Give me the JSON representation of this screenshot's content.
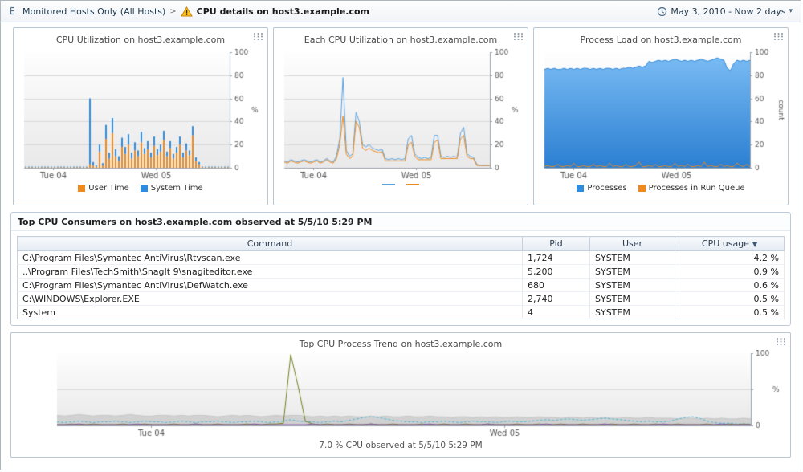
{
  "header": {
    "breadcrumb_root": "Monitored Hosts Only (All Hosts)",
    "breadcrumb_separator": ">",
    "page_title": "CPU details on host3.example.com",
    "time_range": "May 3, 2010 - Now 2 days"
  },
  "icons": {
    "sort_desc": "▼",
    "caret_down": "▾"
  },
  "table": {
    "title": "Top CPU Consumers on host3.example.com observed at 5/5/10 5:29 PM",
    "columns": [
      "Command",
      "Pid",
      "User",
      "CPU usage"
    ],
    "sorted_by": "CPU usage",
    "sort_direction": "desc",
    "rows": [
      {
        "command": "C:\\Program Files\\Symantec AntiVirus\\Rtvscan.exe",
        "pid": "1,724",
        "user": "SYSTEM",
        "cpu": "4.2 %"
      },
      {
        "command": "..\\Program Files\\TechSmith\\SnagIt 9\\snagiteditor.exe",
        "pid": "5,200",
        "user": "SYSTEM",
        "cpu": "0.9 %"
      },
      {
        "command": "C:\\Program Files\\Symantec AntiVirus\\DefWatch.exe",
        "pid": "680",
        "user": "SYSTEM",
        "cpu": "0.6 %"
      },
      {
        "command": "C:\\WINDOWS\\Explorer.EXE",
        "pid": "2,740",
        "user": "SYSTEM",
        "cpu": "0.5 %"
      },
      {
        "command": "System",
        "pid": "4",
        "user": "SYSTEM",
        "cpu": "0.5 %"
      }
    ]
  },
  "chart_data": [
    {
      "id": "cpu_utilization",
      "type": "bar",
      "title": "CPU Utilization on host3.example.com",
      "ylabel": "%",
      "ylim": [
        0,
        100
      ],
      "yticks": [
        0,
        20,
        40,
        60,
        80,
        100
      ],
      "xticks": [
        {
          "label": "Tue 04",
          "pos": 0.14
        },
        {
          "label": "Wed 05",
          "pos": 0.64
        }
      ],
      "stacked": true,
      "series": [
        {
          "name": "User Time",
          "color": "#ee8a1d",
          "render": "bar",
          "values": [
            0.5,
            0.5,
            0.5,
            0.5,
            0.5,
            0.5,
            0.5,
            0.5,
            0.5,
            0.5,
            0.5,
            0.5,
            0.5,
            0.5,
            0.5,
            0.5,
            0.5,
            0.5,
            0.5,
            0.5,
            3,
            2,
            1,
            14,
            2,
            25,
            8,
            30,
            10,
            6,
            18,
            12,
            20,
            8,
            15,
            10,
            22,
            12,
            16,
            9,
            19,
            11,
            14,
            24,
            10,
            17,
            8,
            13,
            20,
            9,
            15,
            11,
            28,
            6,
            3,
            0.5,
            0.5,
            0.5,
            0.5,
            0.5,
            0.5,
            0.5,
            0.5,
            0.5
          ]
        },
        {
          "name": "System Time",
          "color": "#2e8ce0",
          "render": "bar",
          "values": [
            0.5,
            0.5,
            0.5,
            0.5,
            0.5,
            0.5,
            0.5,
            0.5,
            0.5,
            0.5,
            0.5,
            0.5,
            0.5,
            0.5,
            0.5,
            0.5,
            0.5,
            0.5,
            0.5,
            0.5,
            57,
            3,
            1,
            6,
            2,
            12,
            5,
            13,
            6,
            4,
            8,
            6,
            9,
            5,
            7,
            5,
            9,
            5,
            7,
            4,
            8,
            5,
            6,
            8,
            4,
            6,
            4,
            5,
            7,
            4,
            6,
            4,
            8,
            3,
            2,
            0.5,
            0.5,
            0.5,
            0.5,
            0.5,
            0.5,
            0.5,
            0.5,
            0.5
          ]
        }
      ],
      "legend": [
        {
          "label": "User Time",
          "color": "#ee8a1d",
          "shape": "square"
        },
        {
          "label": "System Time",
          "color": "#2e8ce0",
          "shape": "square"
        }
      ]
    },
    {
      "id": "each_cpu",
      "type": "line",
      "title": "Each CPU Utilization on host3.example.com",
      "ylabel": "%",
      "ylim": [
        0,
        100
      ],
      "yticks": [
        0,
        20,
        40,
        60,
        80,
        100
      ],
      "xticks": [
        {
          "label": "Tue 04",
          "pos": 0.14
        },
        {
          "label": "Wed 05",
          "pos": 0.64
        }
      ],
      "series": [
        {
          "name": "cpu-line-blue",
          "color": "#5aa2e0",
          "render": "line",
          "values": [
            6,
            5,
            7,
            6,
            5,
            6,
            7,
            6,
            5,
            6,
            7,
            5,
            6,
            8,
            6,
            5,
            10,
            25,
            78,
            15,
            10,
            12,
            48,
            40,
            20,
            18,
            20,
            17,
            16,
            15,
            16,
            8,
            7,
            8,
            7,
            8,
            7,
            8,
            25,
            28,
            12,
            9,
            8,
            9,
            8,
            9,
            28,
            28,
            10,
            9,
            10,
            9,
            10,
            9,
            30,
            35,
            12,
            10,
            9,
            3,
            2,
            2,
            2,
            2
          ]
        },
        {
          "name": "cpu-line-orange",
          "color": "#ee8a1d",
          "render": "line",
          "values": [
            5,
            4,
            6,
            5,
            4,
            5,
            6,
            5,
            4,
            5,
            6,
            4,
            5,
            7,
            5,
            4,
            8,
            20,
            45,
            12,
            8,
            10,
            40,
            35,
            17,
            15,
            17,
            15,
            14,
            13,
            14,
            6,
            6,
            6,
            6,
            6,
            6,
            6,
            20,
            22,
            10,
            7,
            7,
            7,
            7,
            7,
            22,
            24,
            8,
            8,
            8,
            8,
            8,
            8,
            25,
            28,
            10,
            8,
            8,
            2,
            2,
            2,
            2,
            2
          ]
        }
      ],
      "legend": [
        {
          "label": "",
          "color": "#5aa2e0",
          "shape": "line"
        },
        {
          "label": "",
          "color": "#ee8a1d",
          "shape": "line"
        }
      ]
    },
    {
      "id": "process_load",
      "type": "area",
      "title": "Process Load on host3.example.com",
      "ylabel": "count",
      "ylabel_vertical": true,
      "ylim": [
        0,
        100
      ],
      "yticks": [
        0,
        20,
        40,
        60,
        80,
        100
      ],
      "xticks": [
        {
          "label": "Tue 04",
          "pos": 0.14
        },
        {
          "label": "Wed 05",
          "pos": 0.64
        }
      ],
      "series": [
        {
          "name": "Processes",
          "color": "#2f87d8",
          "render": "area",
          "gradient": [
            "#7dbef5",
            "#2b7fd2"
          ],
          "values": [
            85,
            86,
            85,
            86,
            85,
            85,
            86,
            85,
            86,
            85,
            86,
            85,
            86,
            86,
            85,
            86,
            85,
            86,
            85,
            86,
            86,
            85,
            86,
            85,
            86,
            86,
            87,
            86,
            87,
            88,
            87,
            88,
            92,
            91,
            92,
            93,
            92,
            93,
            92,
            93,
            94,
            93,
            92,
            93,
            92,
            93,
            92,
            93,
            94,
            93,
            92,
            93,
            94,
            95,
            94,
            93,
            86,
            84,
            90,
            93,
            92,
            93,
            92,
            93
          ]
        },
        {
          "name": "Processes in Run Queue",
          "color": "#ee8a1d",
          "render": "line",
          "values": [
            1,
            2,
            1,
            1,
            3,
            1,
            1,
            2,
            1,
            4,
            1,
            1,
            2,
            1,
            1,
            3,
            1,
            2,
            1,
            1,
            4,
            1,
            2,
            1,
            1,
            3,
            1,
            1,
            2,
            5,
            1,
            1,
            2,
            1,
            3,
            1,
            1,
            2,
            1,
            1,
            4,
            1,
            2,
            1,
            3,
            1,
            1,
            2,
            1,
            5,
            1,
            2,
            1,
            1,
            3,
            1,
            2,
            1,
            1,
            4,
            2,
            1,
            3,
            1
          ]
        }
      ],
      "legend": [
        {
          "label": "Processes",
          "color": "#2e8ce0",
          "shape": "square"
        },
        {
          "label": "Processes in Run Queue",
          "color": "#ee8a1d",
          "shape": "square"
        }
      ]
    },
    {
      "id": "process_trend",
      "type": "line",
      "title": "Top CPU Process Trend on host3.example.com",
      "caption": "7.0 % CPU observed at 5/5/10 5:29 PM",
      "ylabel": "%",
      "ylim": [
        0,
        100
      ],
      "yticks": [
        0,
        50,
        100
      ],
      "yticklabels": [
        0,
        100
      ],
      "xticks": [
        {
          "label": "Tue 04",
          "pos": 0.135
        },
        {
          "label": "Wed 05",
          "pos": 0.645
        }
      ],
      "series": [
        {
          "name": "total-gray-area",
          "color": "#c6c6c6",
          "render": "area",
          "gradient": [
            "#e0e0e0",
            "#d0d0d0"
          ],
          "values": [
            14,
            13,
            14,
            15,
            14,
            13,
            14,
            14,
            13,
            14,
            15,
            14,
            13,
            13,
            14,
            14,
            13,
            14,
            13,
            14,
            14,
            13,
            12,
            13,
            14,
            13,
            14,
            13,
            12,
            13,
            14,
            13,
            14,
            14,
            13,
            12,
            13,
            12,
            13,
            12,
            13,
            12,
            12,
            13,
            12,
            13,
            12,
            12,
            13,
            12,
            12,
            13,
            12,
            12,
            11,
            12,
            12,
            11,
            12,
            11,
            12,
            11,
            11,
            12,
            11,
            11,
            12,
            11,
            11,
            10,
            11,
            11,
            10,
            11,
            10,
            11,
            10,
            10,
            11,
            10,
            10,
            11,
            10,
            10,
            10,
            9,
            10,
            10,
            9,
            10,
            9,
            10,
            9,
            9,
            10,
            9
          ]
        },
        {
          "name": "process-cyan-dashed",
          "color": "#4fb6d8",
          "render": "line",
          "dash": true,
          "values": [
            5,
            4,
            5,
            6,
            5,
            4,
            5,
            5,
            6,
            5,
            4,
            5,
            6,
            5,
            5,
            4,
            5,
            6,
            5,
            4,
            5,
            5,
            6,
            5,
            4,
            5,
            5,
            6,
            5,
            4,
            5,
            6,
            8,
            6,
            5,
            5,
            4,
            5,
            6,
            5,
            7,
            9,
            11,
            12,
            11,
            9,
            7,
            6,
            5,
            5,
            4,
            5,
            5,
            6,
            5,
            4,
            5,
            6,
            5,
            5,
            4,
            5,
            6,
            5,
            5,
            6,
            7,
            8,
            7,
            8,
            9,
            8,
            7,
            8,
            9,
            10,
            9,
            8,
            7,
            6,
            5,
            6,
            5,
            5,
            6,
            9,
            11,
            12,
            10,
            6,
            4,
            3,
            3,
            2,
            2,
            2
          ]
        },
        {
          "name": "process-olive",
          "color": "#76801f",
          "render": "line",
          "values": [
            1,
            1,
            2,
            1,
            1,
            2,
            1,
            1,
            1,
            2,
            1,
            1,
            2,
            1,
            1,
            1,
            2,
            1,
            1,
            2,
            1,
            1,
            2,
            1,
            1,
            1,
            2,
            1,
            1,
            2,
            2,
            3,
            98,
            55,
            6,
            2,
            1,
            2,
            1,
            1,
            2,
            1,
            1,
            2,
            1,
            1,
            2,
            1,
            1,
            1,
            2,
            1,
            1,
            2,
            1,
            1,
            2,
            1,
            1,
            2,
            1,
            1,
            1,
            2,
            1,
            1,
            2,
            1,
            1,
            2,
            1,
            1,
            2,
            1,
            1,
            1,
            2,
            1,
            1,
            2,
            1,
            1,
            2,
            1,
            1,
            2,
            1,
            1,
            1,
            2,
            1,
            1,
            2,
            1,
            2,
            1
          ]
        },
        {
          "name": "process-purple",
          "color": "#7a4fa0",
          "render": "line",
          "values": [
            1,
            1,
            1,
            2,
            1,
            1,
            1,
            1,
            1,
            1,
            1,
            2,
            1,
            1,
            1,
            1,
            1,
            1,
            1,
            2,
            1,
            1,
            1,
            1,
            1,
            1,
            1,
            2,
            1,
            1,
            1,
            1,
            1,
            1,
            1,
            2,
            1,
            1,
            1,
            1,
            1,
            1,
            1,
            2,
            1,
            1,
            1,
            1,
            1,
            1,
            1,
            2,
            1,
            1,
            1,
            1,
            1,
            1,
            1,
            2,
            1,
            1,
            1,
            1,
            1,
            1,
            1,
            2,
            1,
            1,
            1,
            1,
            1,
            1,
            1,
            2,
            1,
            1,
            1,
            1,
            1,
            1,
            1,
            2,
            1,
            1,
            1,
            1,
            1,
            1,
            1,
            2,
            1,
            1,
            1,
            1
          ]
        }
      ]
    }
  ]
}
